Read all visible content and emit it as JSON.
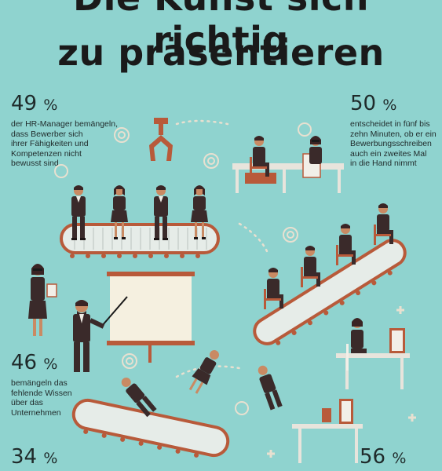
{
  "title": {
    "line1": "Die Kunst sich richtig",
    "line2": "zu präsentieren"
  },
  "stats": [
    {
      "value": "49",
      "unit": "%",
      "text": [
        "der HR-Manager bemängeln,",
        "dass Bewerber sich",
        "ihrer Fähigkeiten und",
        "Kompetenzen nicht",
        "bewusst sind"
      ]
    },
    {
      "value": "50",
      "unit": "%",
      "text": [
        "entscheidet in fünf bis",
        "zehn Minuten, ob er ein",
        "Bewerbungsschreiben",
        "auch ein zweites Mal",
        "in die Hand nimmt"
      ]
    },
    {
      "value": "46",
      "unit": "%",
      "text": [
        "bemängeln das",
        "fehlende Wissen",
        "über das",
        "Unternehmen"
      ]
    },
    {
      "value": "34",
      "unit": "%",
      "text": []
    },
    {
      "value": "56",
      "unit": "%",
      "text": []
    }
  ],
  "colors": {
    "background": "#8fd3cf",
    "suit": "#3a2a2a",
    "skin": "#c98a63",
    "belt": "#e6ece8",
    "belt_rim": "#b85a3a",
    "accent": "#e8e0d0"
  },
  "icons": [
    "claw-icon",
    "conveyor-belt-icon",
    "businessman-icon",
    "businesswoman-icon",
    "presentation-board-icon",
    "desk-icon",
    "computer-monitor-icon",
    "target-ring-icon",
    "plus-icon"
  ]
}
